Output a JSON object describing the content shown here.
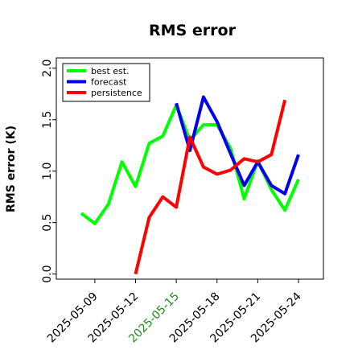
{
  "chart_data": {
    "type": "line",
    "title": "RMS error",
    "ylabel": "RMS error (K)",
    "xlabel": "",
    "x": [
      "2025-05-08",
      "2025-05-09",
      "2025-05-10",
      "2025-05-11",
      "2025-05-12",
      "2025-05-13",
      "2025-05-14",
      "2025-05-15",
      "2025-05-16",
      "2025-05-17",
      "2025-05-18",
      "2025-05-19",
      "2025-05-20",
      "2025-05-21",
      "2025-05-22",
      "2025-05-23",
      "2025-05-24"
    ],
    "x_ticks": [
      "2025-05-09",
      "2025-05-12",
      "2025-05-15",
      "2025-05-18",
      "2025-05-21",
      "2025-05-24"
    ],
    "x_tick_colors": [
      "#000000",
      "#000000",
      "#228B22",
      "#000000",
      "#000000",
      "#000000"
    ],
    "y_ticks": [
      "0.0",
      "0.5",
      "1.0",
      "1.5",
      "2.0"
    ],
    "ylim": [
      -0.05,
      2.1
    ],
    "grid": false,
    "legend_position": "top-left",
    "series": [
      {
        "name": "best est.",
        "color": "#00ff00",
        "values": [
          0.59,
          0.49,
          0.68,
          1.09,
          0.85,
          1.27,
          1.34,
          1.64,
          1.3,
          1.45,
          1.45,
          1.22,
          0.73,
          1.1,
          0.82,
          0.62,
          0.92
        ]
      },
      {
        "name": "forecast",
        "color": "#0000ee",
        "values": [
          null,
          null,
          null,
          null,
          null,
          null,
          null,
          1.66,
          1.2,
          1.72,
          1.48,
          1.17,
          0.86,
          1.09,
          0.86,
          0.78,
          1.16
        ]
      },
      {
        "name": "persistence",
        "color": "#ff0000",
        "values": [
          null,
          null,
          null,
          null,
          0.0,
          0.55,
          0.75,
          0.65,
          1.33,
          1.04,
          0.97,
          1.01,
          1.12,
          1.09,
          1.16,
          1.69,
          null
        ]
      }
    ]
  }
}
